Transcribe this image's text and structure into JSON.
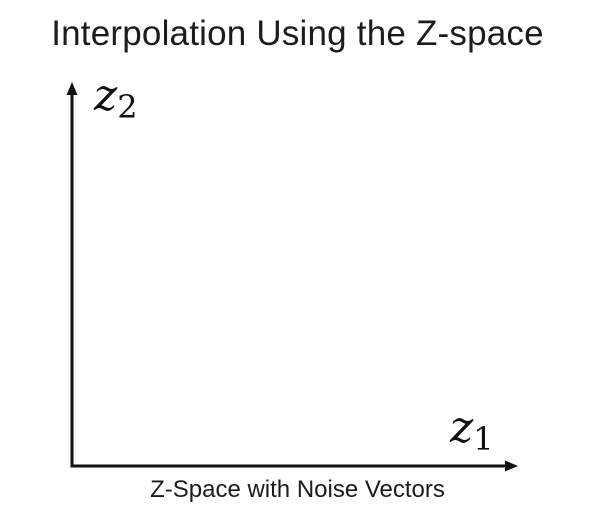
{
  "title": "Interpolation Using the Z-space",
  "diagram": {
    "x_axis": {
      "variable": "z",
      "subscript": "1"
    },
    "y_axis": {
      "variable": "z",
      "subscript": "2"
    },
    "caption": "Z-Space with Noise Vectors"
  }
}
